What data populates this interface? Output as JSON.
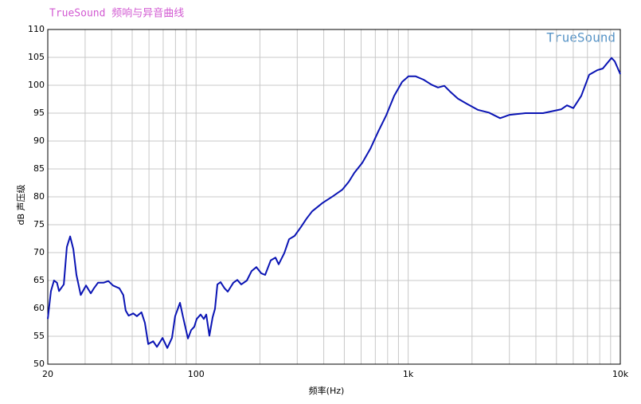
{
  "chart_data": {
    "type": "line",
    "title": "TrueSound 频响与异音曲线",
    "watermark": "TrueSound",
    "x_label": "频率(Hz)",
    "y_label": "dB 声压级",
    "log_x": true,
    "grid": true,
    "xlim": [
      20,
      10000
    ],
    "ylim": [
      50,
      110
    ],
    "xticks": [
      20,
      100,
      {
        "value": 1000,
        "label": "1k"
      },
      {
        "value": 10000,
        "label": "10k"
      }
    ],
    "x_minor_ticks": [
      30,
      40,
      50,
      60,
      70,
      80,
      90,
      200,
      300,
      400,
      500,
      600,
      700,
      800,
      900,
      2000,
      3000,
      4000,
      5000,
      6000,
      7000,
      8000,
      9000
    ],
    "yticks": [
      50,
      55,
      60,
      65,
      70,
      75,
      80,
      85,
      90,
      95,
      100,
      105,
      110
    ],
    "series": [
      {
        "name": "TrueSound",
        "color": "#0a14b4",
        "x": [
          20,
          20.7,
          21.4,
          22.1,
          22.6,
          23.8,
          24.6,
          25.5,
          26.4,
          27.3,
          28.6,
          30.3,
          31.9,
          33.0,
          34.5,
          36.6,
          38.6,
          40.6,
          43.5,
          45.4,
          46.6,
          48.1,
          50.6,
          52.6,
          55.3,
          57.4,
          59.5,
          62.8,
          65.4,
          69.5,
          73.2,
          77.0,
          79.7,
          84.0,
          86.9,
          91.6,
          94.8,
          98.1,
          100.7,
          105.1,
          108.8,
          111.7,
          115.6,
          119.7,
          122.8,
          126.1,
          130.5,
          136.3,
          141.1,
          149.9,
          156.5,
          163.4,
          173.6,
          182.8,
          192.5,
          202.8,
          211.7,
          224.9,
          236.9,
          245.2,
          260.6,
          274.5,
          291.6,
          312.4,
          331.9,
          352.6,
          394.6,
          441.5,
          489.8,
          524.8,
          557.5,
          607.9,
          662.9,
          722.6,
          787.8,
          859,
          936.5,
          1003,
          1085,
          1182,
          1289,
          1382,
          1481,
          1573,
          1715,
          1886,
          2128,
          2402,
          2712,
          3008,
          3575,
          4324,
          5276,
          5605,
          6005,
          6546,
          7138,
          7783,
          8268,
          9094,
          9412,
          10000
        ],
        "values": [
          58.1,
          63.1,
          65,
          64.6,
          63.1,
          64.3,
          71,
          72.9,
          70.6,
          66,
          62.4,
          64.1,
          62.7,
          63.6,
          64.6,
          64.6,
          64.9,
          64.1,
          63.6,
          62.4,
          59.6,
          58.7,
          59.1,
          58.6,
          59.3,
          57.4,
          53.6,
          54.1,
          53.1,
          54.7,
          52.9,
          54.7,
          58.6,
          61,
          58.4,
          54.6,
          56.1,
          56.7,
          58.1,
          58.9,
          58.1,
          58.9,
          55.1,
          58.4,
          59.9,
          64.3,
          64.7,
          63.6,
          63,
          64.6,
          65.1,
          64.3,
          65,
          66.7,
          67.4,
          66.3,
          66,
          68.6,
          69.1,
          67.9,
          69.9,
          72.4,
          73,
          74.6,
          76.1,
          77.4,
          78.9,
          80.1,
          81.3,
          82.7,
          84.3,
          86.1,
          88.6,
          91.7,
          94.6,
          98.1,
          100.6,
          101.6,
          101.6,
          101,
          100.1,
          99.6,
          99.9,
          98.9,
          97.6,
          96.7,
          95.6,
          95.1,
          94.1,
          94.7,
          95,
          95,
          95.7,
          96.4,
          95.9,
          98.1,
          101.9,
          102.7,
          103,
          104.9,
          104.3,
          102
        ]
      }
    ]
  }
}
